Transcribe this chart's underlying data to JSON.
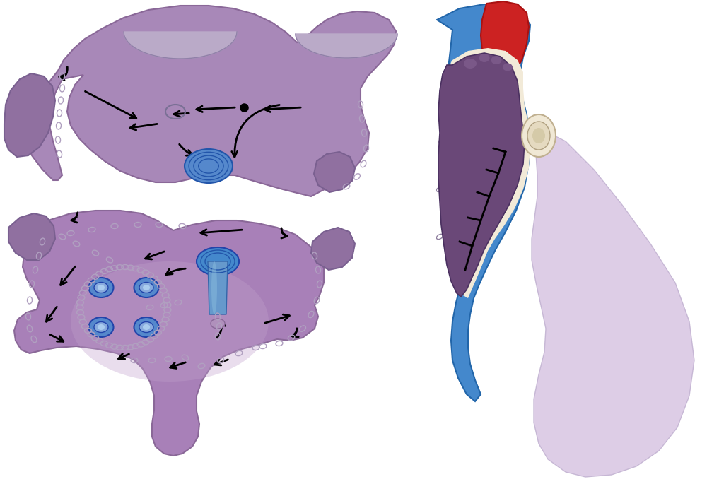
{
  "bg_color": "#ffffff",
  "purple_top_face": "#a888b8",
  "purple_top_dark": "#8a6898",
  "purple_bot_face": "#a080b0",
  "purple_bot_dark": "#8a6898",
  "purple_ear": "#9070a0",
  "blue_vessel": "#6699cc",
  "blue_vessel_dark": "#3366aa",
  "blue_bg": "#4488cc",
  "red_vessel": "#cc2222",
  "cream": "#f2ead8",
  "heart_dark": "#5a3868",
  "heart_inner": "#6a4878",
  "stitch_color": "#b0a0c0",
  "arrow_color": "#111111"
}
